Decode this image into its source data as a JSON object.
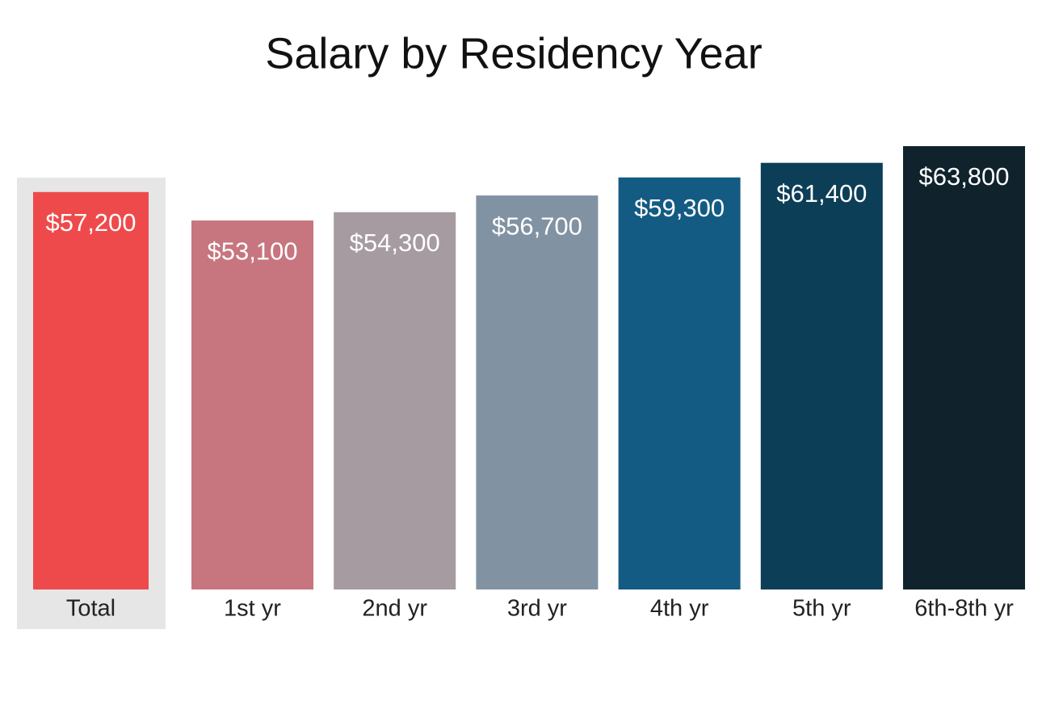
{
  "chart_data": {
    "type": "bar",
    "title": "Salary by Residency Year",
    "categories": [
      "Total",
      "1st yr",
      "2nd yr",
      "3rd yr",
      "4th yr",
      "5th yr",
      "6th-8th yr"
    ],
    "values": [
      57200,
      53100,
      54300,
      56700,
      59300,
      61400,
      63800
    ],
    "value_labels": [
      "$57,200",
      "$53,100",
      "$54,300",
      "$56,700",
      "$59,300",
      "$61,400",
      "$63,800"
    ],
    "colors": [
      "#ee4a4b",
      "#c7757f",
      "#a59ba1",
      "#8192a3",
      "#135b83",
      "#0d3e57",
      "#10232c"
    ]
  }
}
